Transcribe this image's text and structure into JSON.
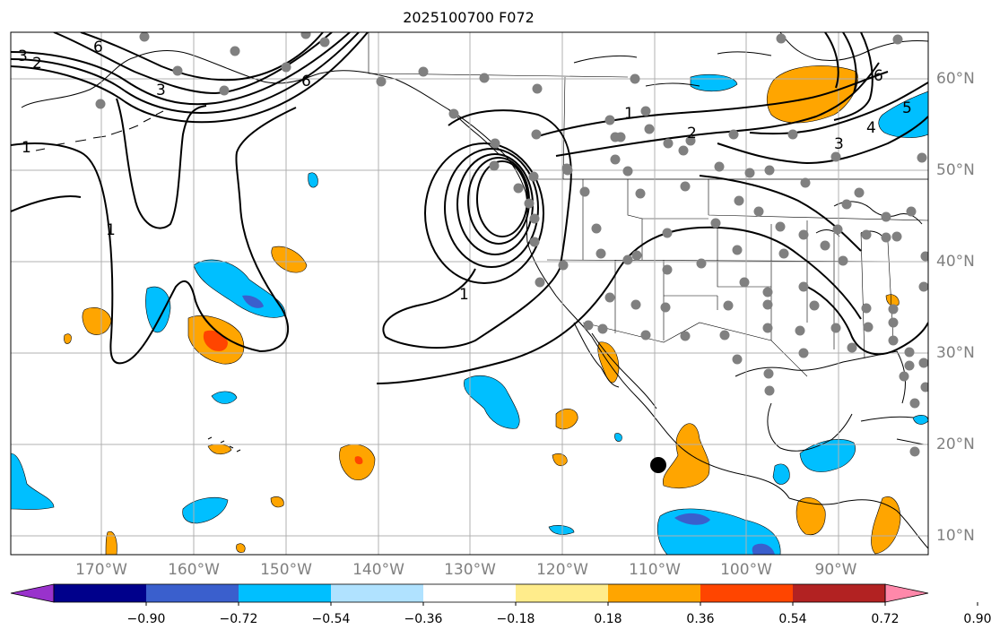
{
  "title": "2025100700 F072",
  "colors": {
    "land": "#ffffff",
    "grid": "#b0b0b0",
    "coast": "#000000",
    "contour": "#000000",
    "station": "#808080",
    "marker": "#000000",
    "tick_label": "#808080"
  },
  "map": {
    "lon_range": [
      -180,
      -80
    ],
    "lat_range": [
      8,
      65
    ],
    "lon_ticks": [
      "170°W",
      "160°W",
      "150°W",
      "140°W",
      "130°W",
      "120°W",
      "110°W",
      "100°W",
      "90°W"
    ],
    "lat_ticks": [
      "10°N",
      "20°N",
      "30°N",
      "40°N",
      "50°N",
      "60°N"
    ]
  },
  "contours": {
    "labels": [
      "3",
      "2",
      "1",
      "3",
      "6",
      "6",
      "1",
      "2",
      "3",
      "4",
      "5",
      "6",
      "1",
      "1"
    ]
  },
  "colorbar": {
    "ticks": [
      "−0.90",
      "−0.72",
      "−0.54",
      "−0.36",
      "−0.18",
      "0.18",
      "0.36",
      "0.54",
      "0.72",
      "0.90"
    ],
    "colors": [
      "#9932cc",
      "#00008b",
      "#3a5fcd",
      "#00bfff",
      "#b0e2ff",
      "#ffffff",
      "#ffec8b",
      "#ffa500",
      "#ff4500",
      "#b22222",
      "#ff88aa"
    ]
  }
}
